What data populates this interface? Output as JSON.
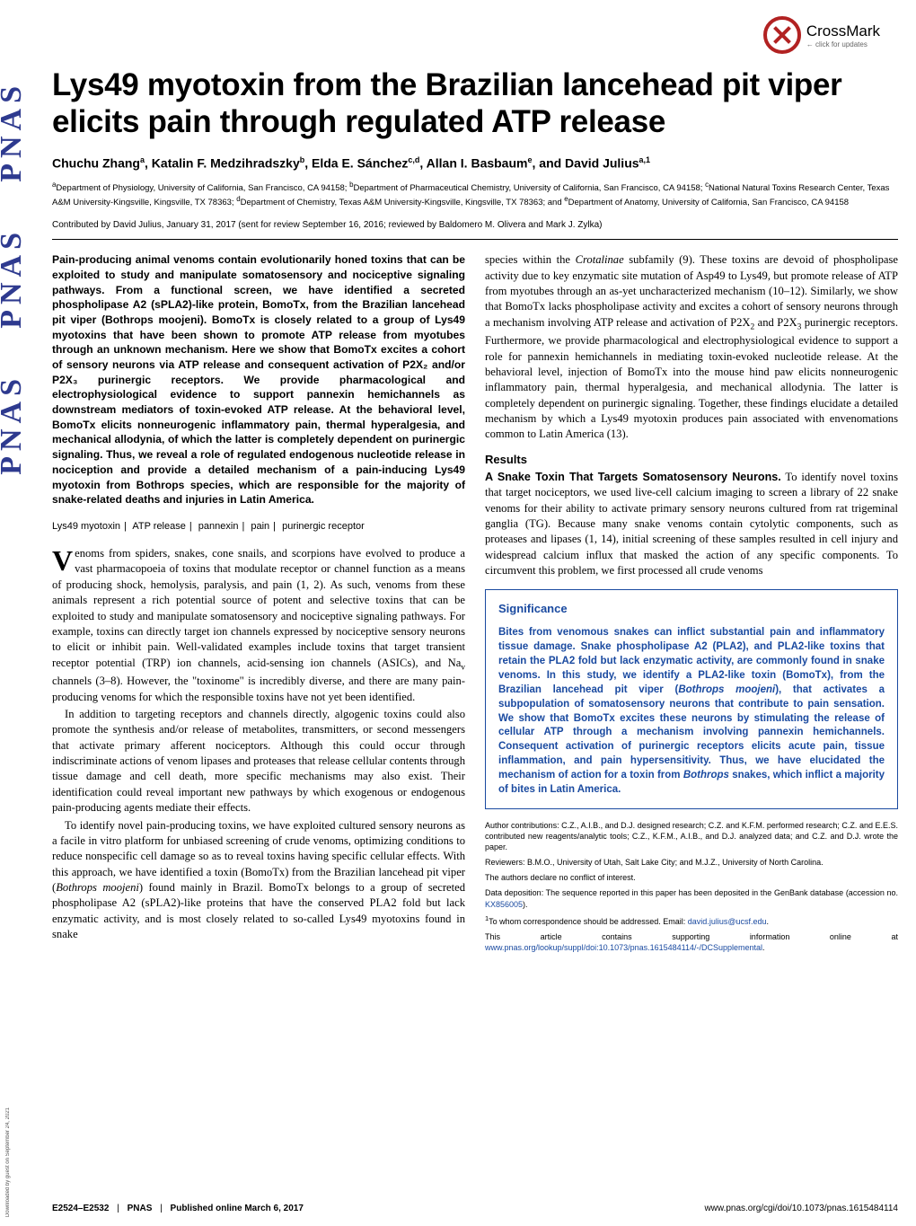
{
  "spine": {
    "text": "PNAS"
  },
  "crossmark": {
    "main": "CrossMark",
    "sub": "← click for updates"
  },
  "title": "Lys49 myotoxin from the Brazilian lancehead pit viper elicits pain through regulated ATP release",
  "authors_html": "Chuchu Zhang<sup>a</sup>, Katalin F. Medzihradszky<sup>b</sup>, Elda E. Sánchez<sup>c,d</sup>, Allan I. Basbaum<sup>e</sup>, and David Julius<sup>a,1</sup>",
  "affiliations_html": "<sup>a</sup>Department of Physiology, University of California, San Francisco, CA 94158; <sup>b</sup>Department of Pharmaceutical Chemistry, University of California, San Francisco, CA 94158; <sup>c</sup>National Natural Toxins Research Center, Texas A&amp;M University-Kingsville, Kingsville, TX 78363; <sup>d</sup>Department of Chemistry, Texas A&amp;M University-Kingsville, Kingsville, TX 78363; and <sup>e</sup>Department of Anatomy, University of California, San Francisco, CA 94158",
  "contributed": "Contributed by David Julius, January 31, 2017 (sent for review September 16, 2016; reviewed by Baldomero M. Olivera and Mark J. Zylka)",
  "abstract": "Pain-producing animal venoms contain evolutionarily honed toxins that can be exploited to study and manipulate somatosensory and nociceptive signaling pathways. From a functional screen, we have identified a secreted phospholipase A2 (sPLA2)-like protein, BomoTx, from the Brazilian lancehead pit viper (Bothrops moojeni). BomoTx is closely related to a group of Lys49 myotoxins that have been shown to promote ATP release from myotubes through an unknown mechanism. Here we show that BomoTx excites a cohort of sensory neurons via ATP release and consequent activation of P2X₂ and/or P2X₃ purinergic receptors. We provide pharmacological and electrophysiological evidence to support pannexin hemichannels as downstream mediators of toxin-evoked ATP release. At the behavioral level, BomoTx elicits nonneurogenic inflammatory pain, thermal hyperalgesia, and mechanical allodynia, of which the latter is completely dependent on purinergic signaling. Thus, we reveal a role of regulated endogenous nucleotide release in nociception and provide a detailed mechanism of a pain-inducing Lys49 myotoxin from Bothrops species, which are responsible for the majority of snake-related deaths and injuries in Latin America.",
  "keywords": [
    "Lys49 myotoxin",
    "ATP release",
    "pannexin",
    "pain",
    "purinergic receptor"
  ],
  "body_col1_p1_html": "enoms from spiders, snakes, cone snails, and scorpions have evolved to produce a vast pharmacopoeia of toxins that modulate receptor or channel function as a means of producing shock, hemolysis, paralysis, and pain (1, 2). As such, venoms from these animals represent a rich potential source of potent and selective toxins that can be exploited to study and manipulate somatosensory and nociceptive signaling pathways. For example, toxins can directly target ion channels expressed by nociceptive sensory neurons to elicit or inhibit pain. Well-validated examples include toxins that target transient receptor potential (TRP) ion channels, acid-sensing ion channels (ASICs), and Na<sub>v</sub> channels (3–8). However, the \"toxinome\" is incredibly diverse, and there are many pain-producing venoms for which the responsible toxins have not yet been identified.",
  "body_col1_p2_html": "In addition to targeting receptors and channels directly, algogenic toxins could also promote the synthesis and/or release of metabolites, transmitters, or second messengers that activate primary afferent nociceptors. Although this could occur through indiscriminate actions of venom lipases and proteases that release cellular contents through tissue damage and cell death, more specific mechanisms may also exist. Their identification could reveal important new pathways by which exogenous or endogenous pain-producing agents mediate their effects.",
  "body_col1_p3_html": "To identify novel pain-producing toxins, we have exploited cultured sensory neurons as a facile in vitro platform for unbiased screening of crude venoms, optimizing conditions to reduce nonspecific cell damage so as to reveal toxins having specific cellular effects. With this approach, we have identified a toxin (BomoTx) from the Brazilian lancehead pit viper (<span class=\"italic\">Bothrops moojeni</span>) found mainly in Brazil. BomoTx belongs to a group of secreted phospholipase A2 (sPLA2)-like proteins that have the conserved PLA2 fold but lack enzymatic activity, and is most closely related to so-called Lys49 myotoxins found in snake",
  "body_col2_p1_html": "species within the <span class=\"italic\">Crotalinae</span> subfamily (9). These toxins are devoid of phospholipase activity due to key enzymatic site mutation of Asp49 to Lys49, but promote release of ATP from myotubes through an as-yet uncharacterized mechanism (10–12). Similarly, we show that BomoTx lacks phospholipase activity and excites a cohort of sensory neurons through a mechanism involving ATP release and activation of P2X<sub>2</sub> and P2X<sub>3</sub> purinergic receptors. Furthermore, we provide pharmacological and electrophysiological evidence to support a role for pannexin hemichannels in mediating toxin-evoked nucleotide release. At the behavioral level, injection of BomoTx into the mouse hind paw elicits nonneurogenic inflammatory pain, thermal hyperalgesia, and mechanical allodynia. The latter is completely dependent on purinergic signaling. Together, these findings elucidate a detailed mechanism by which a Lys49 myotoxin produces pain associated with envenomations common to Latin America (13).",
  "results_head": "Results",
  "results_runin": "A Snake Toxin That Targets Somatosensory Neurons.",
  "results_body_html": " To identify novel toxins that target nociceptors, we used live-cell calcium imaging to screen a library of 22 snake venoms for their ability to activate primary sensory neurons cultured from rat trigeminal ganglia (TG). Because many snake venoms contain cytolytic components, such as proteases and lipases (1, 14), initial screening of these samples resulted in cell injury and widespread calcium influx that masked the action of any specific components. To circumvent this problem, we first processed all crude venoms",
  "significance": {
    "head": "Significance",
    "body_html": "Bites from venomous snakes can inflict substantial pain and inflammatory tissue damage. Snake phospholipase A2 (PLA2), and PLA2-like toxins that retain the PLA2 fold but lack enzymatic activity, are commonly found in snake venoms. In this study, we identify a PLA2-like toxin (BomoTx), from the Brazilian lancehead pit viper (<span class=\"italic\">Bothrops moojeni</span>), that activates a subpopulation of somatosensory neurons that contribute to pain sensation. We show that BomoTx excites these neurons by stimulating the release of cellular ATP through a mechanism involving pannexin hemichannels. Consequent activation of purinergic receptors elicits acute pain, tissue inflammation, and pain hypersensitivity. Thus, we have elucidated the mechanism of action for a toxin from <span class=\"italic\">Bothrops</span> snakes, which inflict a majority of bites in Latin America."
  },
  "footnotes": {
    "author_contrib": "Author contributions: C.Z., A.I.B., and D.J. designed research; C.Z. and K.F.M. performed research; C.Z. and E.E.S. contributed new reagents/analytic tools; C.Z., K.F.M., A.I.B., and D.J. analyzed data; and C.Z. and D.J. wrote the paper.",
    "reviewers": "Reviewers: B.M.O., University of Utah, Salt Lake City; and M.J.Z., University of North Carolina.",
    "conflict": "The authors declare no conflict of interest.",
    "deposition_html": "Data deposition: The sequence reported in this paper has been deposited in the GenBank database (accession no. <a href=\"#\">KX856005</a>).",
    "correspondence_html": "<sup>1</sup>To whom correspondence should be addressed. Email: <a href=\"#\">david.julius@ucsf.edu</a>.",
    "supporting_html": "This article contains supporting information online at <a href=\"#\">www.pnas.org/lookup/suppl/doi:10.1073/pnas.1615484114/-/DCSupplemental</a>."
  },
  "footer": {
    "pages": "E2524–E2532",
    "journal": "PNAS",
    "pubdate": "Published online March 6, 2017",
    "doi": "www.pnas.org/cgi/doi/10.1073/pnas.1615484114"
  },
  "download_note": "Downloaded by guest on September 24, 2021",
  "colors": {
    "link": "#1a4aa0",
    "spine": "#2e3a8f",
    "crossmark_ring": "#b22222"
  }
}
